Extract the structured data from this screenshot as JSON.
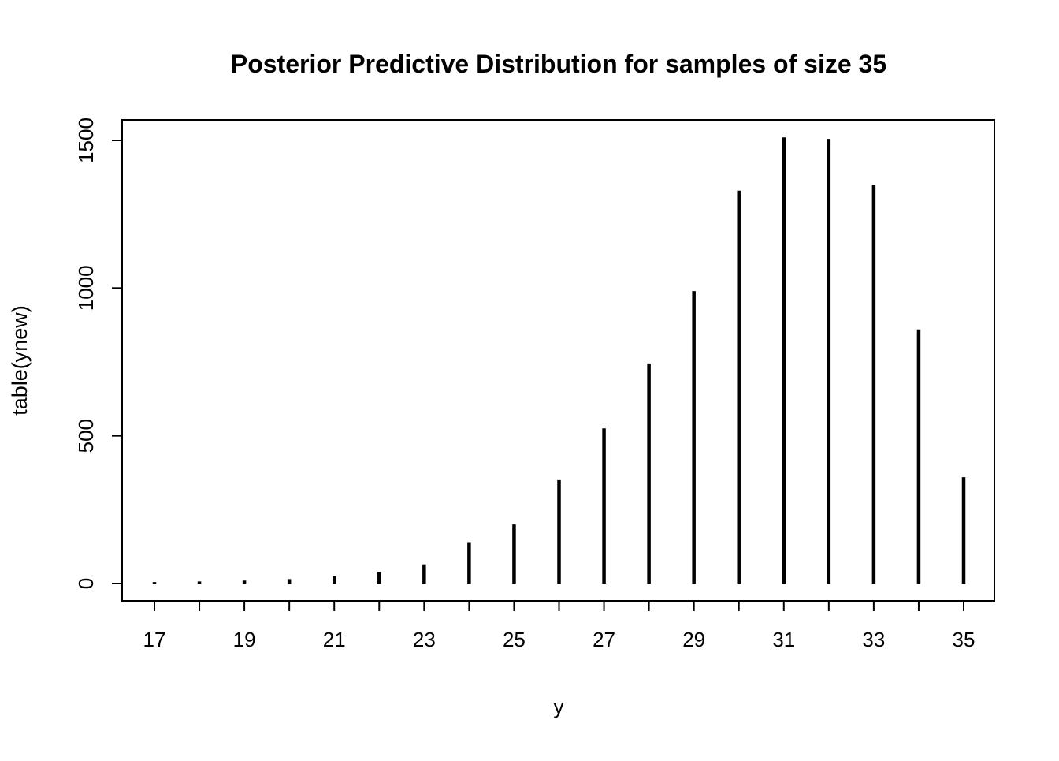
{
  "title": "Posterior Predictive Distribution for samples of size 35",
  "chart_data": {
    "type": "bar",
    "subtype": "spike-histogram",
    "title": "Posterior Predictive Distribution for samples of size 35",
    "xlabel": "y",
    "ylabel": "table(ynew)",
    "x": [
      17,
      18,
      19,
      20,
      21,
      22,
      23,
      24,
      25,
      26,
      27,
      28,
      29,
      30,
      31,
      32,
      33,
      34,
      35
    ],
    "values": [
      5,
      7,
      10,
      15,
      25,
      40,
      65,
      140,
      200,
      350,
      525,
      745,
      990,
      1330,
      1510,
      1505,
      1350,
      860,
      360
    ],
    "x_tick_labels": [
      17,
      19,
      21,
      23,
      25,
      27,
      29,
      31,
      33,
      35
    ],
    "y_ticks": [
      0,
      500,
      1000,
      1500
    ],
    "xlim": [
      16.3,
      35.7
    ],
    "ylim": [
      0,
      1570
    ],
    "grid": false,
    "legend": null,
    "spike_color": "#000000",
    "background_color": "#ffffff"
  }
}
